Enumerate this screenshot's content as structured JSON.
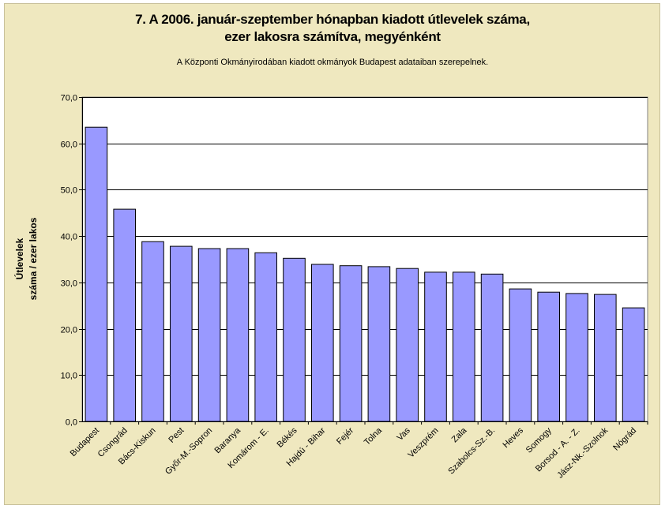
{
  "chart_data": {
    "type": "bar",
    "title_line1": "7. A 2006. január-szeptember hónapban kiadott útlevelek száma,",
    "title_line2": "ezer lakosra számítva, megyénként",
    "subtitle": "A Központi Okmányirodában kiadott okmányok Budapest adataiban szerepelnek.",
    "ylabel_line1": "Útlevelek",
    "ylabel_line2": "száma / ezer lakos",
    "xlabel": "",
    "ylim": [
      0,
      70
    ],
    "yticks": [
      "0,0",
      "10,0",
      "20,0",
      "30,0",
      "40,0",
      "50,0",
      "60,0",
      "70,0"
    ],
    "grid": true,
    "legend": "none",
    "bar_color": "#9999ff",
    "plot_background": "#ffffff",
    "chart_background": "#efe8bf",
    "categories": [
      "Budapest",
      "Csongrád",
      "Bács-Kiskun",
      "Pest",
      "Győr-M.-Sopron",
      "Baranya",
      "Komárom - E.",
      "Békés",
      "Hajdú - Bihar",
      "Fejér",
      "Tolna",
      "Vas",
      "Veszprém",
      "Zala",
      "Szabolcs-Sz.-B.",
      "Heves",
      "Somogy",
      "Borsod - A. - Z.",
      "Jász-Nk.-Szolnok",
      "Nógrád"
    ],
    "values": [
      63.5,
      45.8,
      38.8,
      37.8,
      37.3,
      37.3,
      36.4,
      35.2,
      33.9,
      33.6,
      33.4,
      33.0,
      32.2,
      32.2,
      31.8,
      28.6,
      27.9,
      27.6,
      27.4,
      24.5
    ]
  }
}
